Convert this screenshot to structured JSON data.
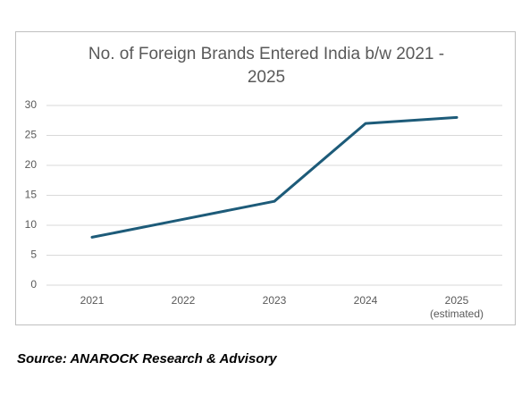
{
  "chart_data": {
    "type": "line",
    "title": "No. of Foreign Brands Entered India b/w 2021 - 2025",
    "categories": [
      "2021",
      "2022",
      "2023",
      "2024",
      "2025\n(estimated)"
    ],
    "series": [
      {
        "color": "#1d5b79",
        "values": [
          8,
          11,
          14,
          27,
          28
        ]
      }
    ],
    "ylim": [
      0,
      30
    ],
    "yticks": [
      0,
      5,
      10,
      15,
      20,
      25,
      30
    ],
    "grid": true
  },
  "source": "Source: ANAROCK Research & Advisory"
}
